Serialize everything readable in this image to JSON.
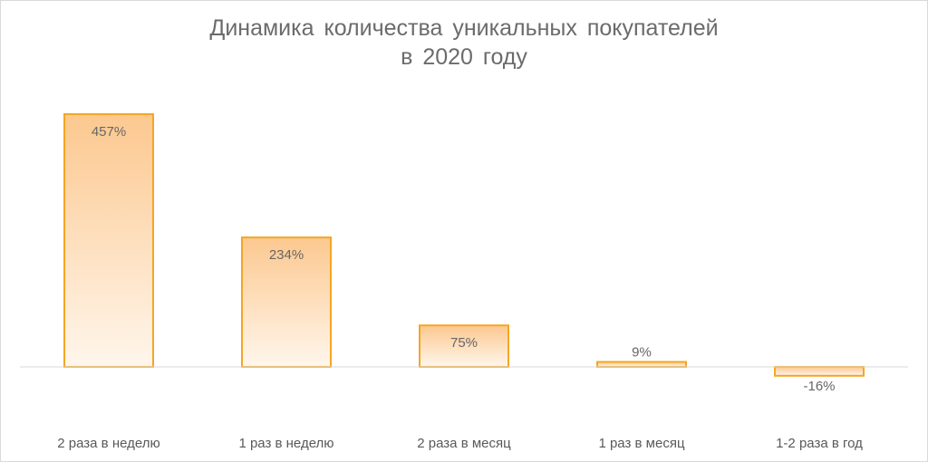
{
  "chart_data": {
    "type": "bar",
    "title_line1": "Динамика количества уникальных покупателей",
    "title_line2": "в 2020 году",
    "categories": [
      "2 раза в неделю",
      "1 раз в неделю",
      "2 раза в месяц",
      "1 раз в месяц",
      "1-2 раза в год"
    ],
    "values": [
      457,
      234,
      75,
      9,
      -16
    ],
    "data_labels": [
      "457%",
      "234%",
      "75%",
      "9%",
      "-16%"
    ],
    "unit": "%",
    "xlabel": "",
    "ylabel": "",
    "ylim": [
      -16,
      457
    ],
    "grid": false,
    "legend": "none",
    "colors": {
      "bar_fill_top": "#fcc88f",
      "bar_fill_bottom": "#fff6ec",
      "bar_border": "#f5a623",
      "baseline": "#d9d9d9"
    }
  }
}
